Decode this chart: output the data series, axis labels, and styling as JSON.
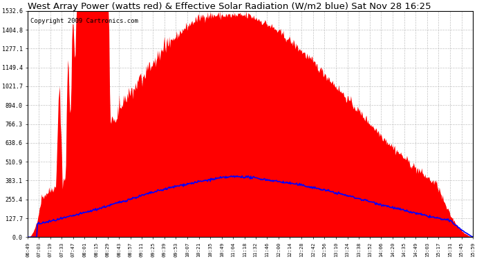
{
  "title": "West Array Power (watts red) & Effective Solar Radiation (W/m2 blue) Sat Nov 28 16:25",
  "copyright": "Copyright 2009 Cartronics.com",
  "y_ticks": [
    0.0,
    127.7,
    255.4,
    383.1,
    510.9,
    638.6,
    766.3,
    894.0,
    1021.7,
    1149.4,
    1277.1,
    1404.8,
    1532.6
  ],
  "x_labels": [
    "06:49",
    "07:03",
    "07:19",
    "07:33",
    "07:47",
    "08:01",
    "08:15",
    "08:29",
    "08:43",
    "08:57",
    "09:11",
    "09:25",
    "09:39",
    "09:53",
    "10:07",
    "10:21",
    "10:35",
    "10:49",
    "11:04",
    "11:18",
    "11:32",
    "11:46",
    "12:00",
    "12:14",
    "12:28",
    "12:42",
    "12:56",
    "13:10",
    "13:24",
    "13:38",
    "13:52",
    "14:06",
    "14:20",
    "14:35",
    "14:49",
    "15:03",
    "15:17",
    "15:31",
    "15:45",
    "15:59"
  ],
  "bg_color": "#ffffff",
  "grid_color": "#bbbbbb",
  "red_fill": "#ff0000",
  "blue_line": "#0000ff",
  "title_color": "#000000",
  "copyright_color": "#000000",
  "title_fontsize": 9.5,
  "copyright_fontsize": 6.5,
  "peak_power": 1532.6,
  "peak_blue": 395.0
}
